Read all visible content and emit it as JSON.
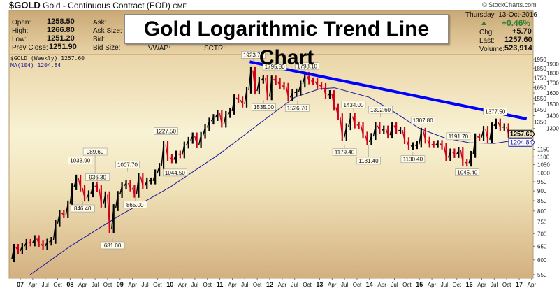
{
  "header": {
    "symbol": "$GOLD",
    "description": "Gold - Continuous Contract (EOD)",
    "exchange": "CME",
    "watermark": "© StockCharts.com",
    "open_label": "Open:",
    "open": "1258.50",
    "high_label": "High:",
    "high": "1266.80",
    "low_label": "Low:",
    "low": "1251.20",
    "prev_close_label": "Prev Close:",
    "prev_close": "1251.90",
    "ask_label": "Ask:",
    "ask_size_label": "Ask Size:",
    "bid_label": "Bid:",
    "bid_size_label": "Bid Size:",
    "vwap_label": "VWAP:",
    "sctr_label": "SCTR:",
    "day": "Thursday",
    "date": "13-Oct-2016",
    "pct_change": "+0.46%",
    "chg_label": "Chg:",
    "chg": "+5.70",
    "last_label": "Last:",
    "last": "1257.60",
    "volume_label": "Volume:",
    "volume": "523,914",
    "overlay_title": "Gold Logarithmic Trend Line Chart",
    "colors": {
      "up": "#2e7d32",
      "bar_up": "#000000",
      "bar_down": "#d0021b",
      "ma": "#1a1aa0",
      "trend": "#0000ff"
    }
  },
  "chart_data": {
    "type": "line",
    "title": "Gold Logarithmic Trend Line Chart",
    "legend": [
      {
        "text": "$GOLD (Weekly) 1257.60"
      },
      {
        "text": "MA(104) 1204.84"
      }
    ],
    "y_scale": "log",
    "ylim": [
      540,
      1980
    ],
    "xlim": [
      2006.78,
      2017.3
    ],
    "y_ticks": [
      "1950",
      "1900",
      "1850",
      "1800",
      "1750",
      "1700",
      "1650",
      "1600",
      "1550",
      "1500",
      "1450",
      "1400",
      "1350",
      "1300",
      "1150",
      "1100",
      "1050",
      "1000",
      "950",
      "900",
      "850",
      "800",
      "750",
      "700",
      "650",
      "600",
      "550"
    ],
    "price_tags": [
      {
        "value": "1257.60",
        "type": "last"
      },
      {
        "value": "1204.84",
        "type": "ma"
      }
    ],
    "x_ticks": [
      {
        "label": "07",
        "year": 2007,
        "major": true
      },
      {
        "label": "Apr",
        "year": 2007.25
      },
      {
        "label": "Jul",
        "year": 2007.5
      },
      {
        "label": "Oct",
        "year": 2007.75
      },
      {
        "label": "08",
        "year": 2008,
        "major": true
      },
      {
        "label": "Apr",
        "year": 2008.25
      },
      {
        "label": "Jul",
        "year": 2008.5
      },
      {
        "label": "Oct",
        "year": 2008.75
      },
      {
        "label": "09",
        "year": 2009,
        "major": true
      },
      {
        "label": "Apr",
        "year": 2009.25
      },
      {
        "label": "Jul",
        "year": 2009.5
      },
      {
        "label": "Oct",
        "year": 2009.75
      },
      {
        "label": "10",
        "year": 2010,
        "major": true
      },
      {
        "label": "Apr",
        "year": 2010.25
      },
      {
        "label": "Jul",
        "year": 2010.5
      },
      {
        "label": "Oct",
        "year": 2010.75
      },
      {
        "label": "11",
        "year": 2011,
        "major": true
      },
      {
        "label": "Apr",
        "year": 2011.25
      },
      {
        "label": "Jul",
        "year": 2011.5
      },
      {
        "label": "Oct",
        "year": 2011.75
      },
      {
        "label": "12",
        "year": 2012,
        "major": true
      },
      {
        "label": "Apr",
        "year": 2012.25
      },
      {
        "label": "Jul",
        "year": 2012.5
      },
      {
        "label": "Oct",
        "year": 2012.75
      },
      {
        "label": "13",
        "year": 2013,
        "major": true
      },
      {
        "label": "Apr",
        "year": 2013.25
      },
      {
        "label": "Jul",
        "year": 2013.5
      },
      {
        "label": "Oct",
        "year": 2013.75
      },
      {
        "label": "14",
        "year": 2014,
        "major": true
      },
      {
        "label": "Apr",
        "year": 2014.25
      },
      {
        "label": "Jul",
        "year": 2014.5
      },
      {
        "label": "Oct",
        "year": 2014.75
      },
      {
        "label": "15",
        "year": 2015,
        "major": true
      },
      {
        "label": "Apr",
        "year": 2015.25
      },
      {
        "label": "Jul",
        "year": 2015.5
      },
      {
        "label": "Oct",
        "year": 2015.75
      },
      {
        "label": "16",
        "year": 2016,
        "major": true
      },
      {
        "label": "Apr",
        "year": 2016.25
      },
      {
        "label": "Jul",
        "year": 2016.5
      },
      {
        "label": "Oct",
        "year": 2016.75
      },
      {
        "label": "17",
        "year": 2017,
        "major": true
      },
      {
        "label": "Apr",
        "year": 2017.25
      }
    ],
    "series": [
      {
        "type": "price",
        "start_year": 2006.79,
        "step_years": 0.0833,
        "values": [
          604,
          646,
          632,
          650,
          665,
          663,
          680,
          659,
          650,
          666,
          673,
          743,
          789,
          783,
          834,
          923,
          971,
          916,
          863,
          885,
          928,
          912,
          833,
          880,
          718,
          816,
          882,
          927,
          942,
          916,
          883,
          979,
          927,
          955,
          955,
          1001,
          1040,
          1182,
          1096,
          1081,
          1118,
          1113,
          1179,
          1212,
          1244,
          1181,
          1248,
          1307,
          1357,
          1386,
          1421,
          1333,
          1411,
          1439,
          1556,
          1536,
          1500,
          1628,
          1828,
          1620,
          1725,
          1746,
          1566,
          1738,
          1711,
          1669,
          1664,
          1560,
          1604,
          1610,
          1687,
          1776,
          1719,
          1712,
          1675,
          1663,
          1578,
          1595,
          1472,
          1392,
          1234,
          1313,
          1395,
          1327,
          1323,
          1250,
          1202,
          1240,
          1321,
          1284,
          1296,
          1250,
          1322,
          1282,
          1287,
          1210,
          1171,
          1175,
          1184,
          1279,
          1213,
          1183,
          1182,
          1190,
          1172,
          1095,
          1132,
          1115,
          1142,
          1065,
          1060,
          1116,
          1238,
          1233,
          1293,
          1215,
          1320,
          1350,
          1309,
          1313,
          1257.6
        ]
      },
      {
        "type": "ma",
        "x": [
          2007.2,
          2008.0,
          2009.0,
          2010.0,
          2011.0,
          2012.0,
          2012.5,
          2013.0,
          2013.3,
          2014.0,
          2014.5,
          2015.0,
          2015.5,
          2016.0,
          2016.5,
          2016.78
        ],
        "values": [
          550,
          650,
          780,
          920,
          1120,
          1400,
          1560,
          1640,
          1650,
          1560,
          1430,
          1300,
          1230,
          1195,
          1190,
          1205
        ]
      },
      {
        "type": "trendline",
        "x": [
          2011.6,
          2017.15
        ],
        "values": [
          1923.7,
          1375
        ]
      }
    ],
    "annotations": [
      {
        "text": "1033.90",
        "year": 2008.2,
        "value": 1033.9,
        "pos": "above"
      },
      {
        "text": "989.60",
        "year": 2008.5,
        "value": 989.6,
        "pos": "above"
      },
      {
        "text": "936.30",
        "year": 2008.55,
        "value": 936.3,
        "pos": "above"
      },
      {
        "text": "846.40",
        "year": 2008.25,
        "value": 846.4,
        "pos": "below"
      },
      {
        "text": "681.00",
        "year": 2008.85,
        "value": 681,
        "pos": "below"
      },
      {
        "text": "1007.70",
        "year": 2009.15,
        "value": 1007.7,
        "pos": "above"
      },
      {
        "text": "865.00",
        "year": 2009.3,
        "value": 865,
        "pos": "below"
      },
      {
        "text": "1227.50",
        "year": 2009.92,
        "value": 1227.5,
        "pos": "above"
      },
      {
        "text": "1044.50",
        "year": 2010.1,
        "value": 1044.5,
        "pos": "below"
      },
      {
        "text": "1923.70",
        "year": 2011.67,
        "value": 1923.7,
        "pos": "above"
      },
      {
        "text": "1535.00",
        "year": 2011.88,
        "value": 1535,
        "pos": "below"
      },
      {
        "text": "1795.80",
        "year": 2012.1,
        "value": 1795.8,
        "pos": "above"
      },
      {
        "text": "1526.70",
        "year": 2012.55,
        "value": 1526.7,
        "pos": "below"
      },
      {
        "text": "1798.10",
        "year": 2012.75,
        "value": 1798.1,
        "pos": "above"
      },
      {
        "text": "1179.40",
        "year": 2013.5,
        "value": 1179.4,
        "pos": "below"
      },
      {
        "text": "1434.00",
        "year": 2013.68,
        "value": 1434,
        "pos": "above"
      },
      {
        "text": "1181.40",
        "year": 2013.98,
        "value": 1181.4,
        "pos": "below"
      },
      {
        "text": "1392.60",
        "year": 2014.22,
        "value": 1392.6,
        "pos": "above"
      },
      {
        "text": "1130.40",
        "year": 2014.87,
        "value": 1130.4,
        "pos": "below"
      },
      {
        "text": "1307.80",
        "year": 2015.07,
        "value": 1307.8,
        "pos": "above"
      },
      {
        "text": "1191.70",
        "year": 2015.78,
        "value": 1191.7,
        "pos": "above"
      },
      {
        "text": "1045.40",
        "year": 2015.96,
        "value": 1045.4,
        "pos": "below"
      },
      {
        "text": "1377.50",
        "year": 2016.52,
        "value": 1377.5,
        "pos": "above"
      }
    ]
  }
}
